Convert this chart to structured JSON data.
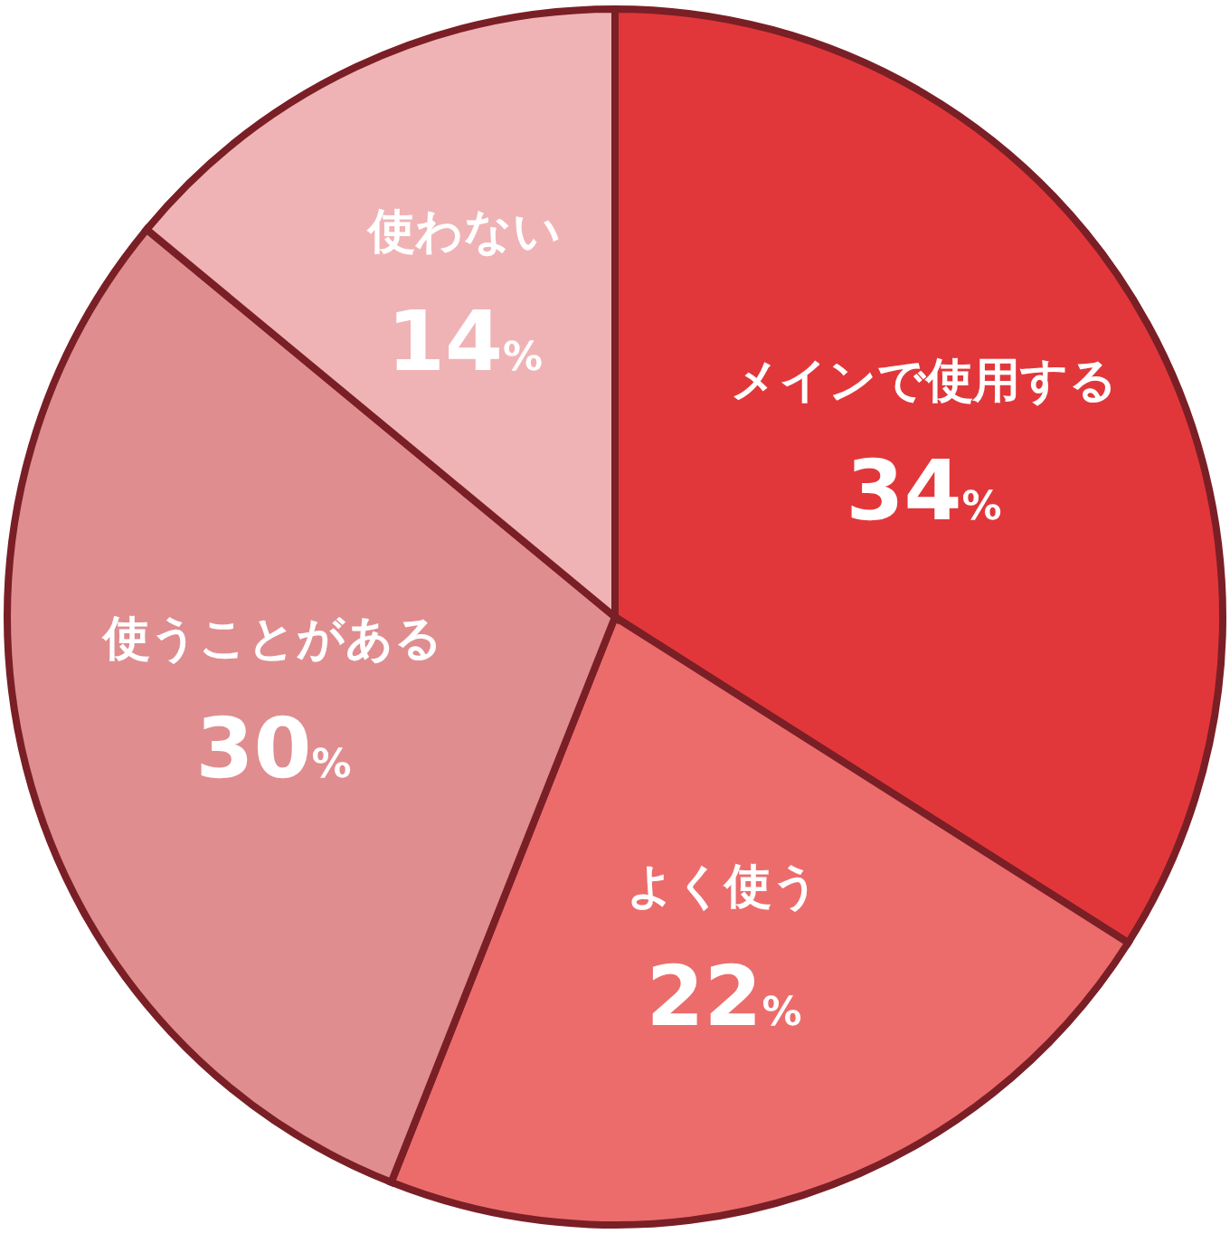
{
  "chart_data": {
    "type": "pie",
    "categories": [
      "メインで使用する",
      "よく使う",
      "使うことがある",
      "使わない"
    ],
    "values": [
      34,
      22,
      30,
      14
    ],
    "value_labels": [
      "34%",
      "22%",
      "30%",
      "14%"
    ],
    "colors": [
      "#e2373a",
      "#ec6c6c",
      "#e08d90",
      "#f0b3b5"
    ],
    "legend": false
  }
}
